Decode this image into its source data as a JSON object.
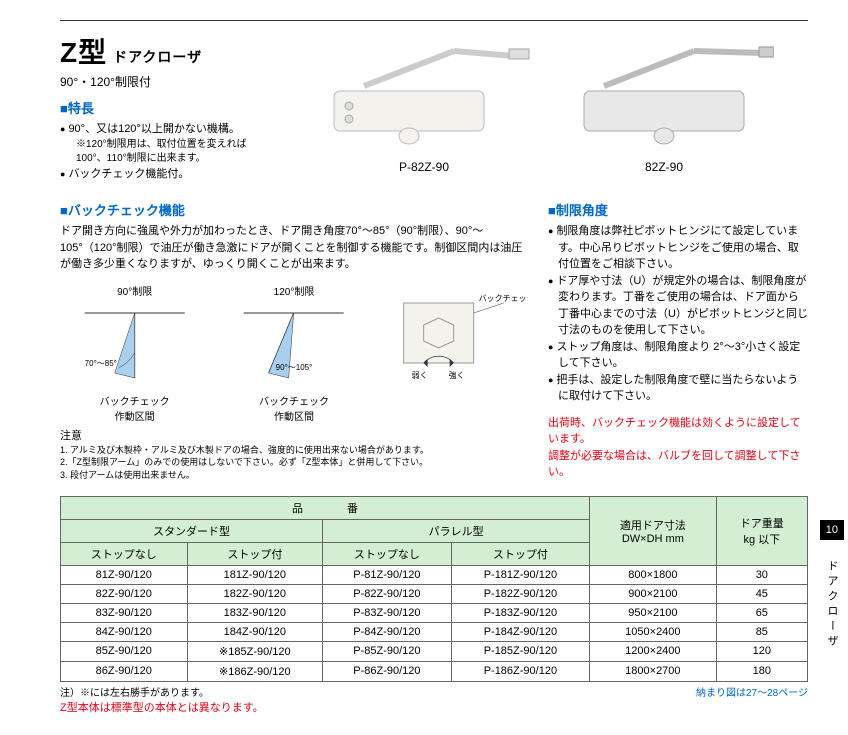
{
  "title": {
    "main": "Z型",
    "sub": "ドアクローザ"
  },
  "subtitle": "90°・120°制限付",
  "features": {
    "heading": "■特長",
    "items": [
      "90°、又は120°以上開かない機構。",
      "バックチェック機能付。"
    ],
    "note": "※120°制限用は、取付位置を変えれば　100°、110°制限に出来ます。"
  },
  "products": [
    {
      "label": "P-82Z-90"
    },
    {
      "label": "82Z-90"
    }
  ],
  "backcheck": {
    "heading": "■バックチェック機能",
    "text": "ドア開き方向に強風や外力が加わったとき、ドア開き角度70°～85°（90°制限）、90°～105°（120°制限）で油圧が働き急激にドアが開くことを制御する機能です。制御区間内は油圧が働き多少重くなりますが、ゆっくり開くことが出来ます。",
    "diag90": {
      "title": "90°制限",
      "range": "70°～85°",
      "note": "バックチェック\n作動区間"
    },
    "diag120": {
      "title": "120°制限",
      "range": "90°～105°",
      "note": "バックチェック\n作動区間"
    },
    "valve": {
      "label": "バックチェック調整バルブ",
      "weak": "弱く",
      "strong": "強く"
    }
  },
  "angle": {
    "heading": "■制限角度",
    "items": [
      "制限角度は弊社ピボットヒンジにて設定しています。中心吊りピボットヒンジをご使用の場合、取付位置をご相談下さい。",
      "ドア厚や寸法（U）が規定外の場合は、制限角度が変わります。丁番をご使用の場合は、ドア面から丁番中心までの寸法（U）がピボットヒンジと同じ寸法のものを使用して下さい。",
      "ストップ角度は、制限角度より 2°～3°小さく設定して下さい。",
      "把手は、設定した制限角度で壁に当たらないように取付けて下さい。"
    ]
  },
  "caution": {
    "heading": "注意",
    "items": [
      "1. アルミ及び木製枠・アルミ及び木製ドアの場合、強度的に使用出来ない場合があります。",
      "2.「Z型制限アーム」のみでの使用はしないで下さい。必ず「Z型本体」と併用して下さい。",
      "3. 段付アームは使用出来ません。"
    ]
  },
  "shipping_note": "出荷時、バックチェック機能は効くように設定しています。\n調整が必要な場合は、バルブを回して調整して下さい。",
  "table": {
    "head1": "品　　　　番",
    "head_std": "スタンダード型",
    "head_par": "パラレル型",
    "head_dim": "適用ドア寸法\nDW×DH mm",
    "head_wt": "ドア重量\nkg 以下",
    "sub_nostop": "ストップなし",
    "sub_stop": "ストップ付",
    "rows": [
      {
        "c1": "81Z-90/120",
        "c2": "181Z-90/120",
        "c3": "P-81Z-90/120",
        "c4": "P-181Z-90/120",
        "dim": "800×1800",
        "wt": "30"
      },
      {
        "c1": "82Z-90/120",
        "c2": "182Z-90/120",
        "c3": "P-82Z-90/120",
        "c4": "P-182Z-90/120",
        "dim": "900×2100",
        "wt": "45"
      },
      {
        "c1": "83Z-90/120",
        "c2": "183Z-90/120",
        "c3": "P-83Z-90/120",
        "c4": "P-183Z-90/120",
        "dim": "950×2100",
        "wt": "65"
      },
      {
        "c1": "84Z-90/120",
        "c2": "184Z-90/120",
        "c3": "P-84Z-90/120",
        "c4": "P-184Z-90/120",
        "dim": "1050×2400",
        "wt": "85"
      },
      {
        "c1": "85Z-90/120",
        "c2": "※185Z-90/120",
        "c3": "P-85Z-90/120",
        "c4": "P-185Z-90/120",
        "dim": "1200×2400",
        "wt": "120"
      },
      {
        "c1": "86Z-90/120",
        "c2": "※186Z-90/120",
        "c3": "P-86Z-90/120",
        "c4": "P-186Z-90/120",
        "dim": "1800×2700",
        "wt": "180"
      }
    ]
  },
  "table_note": "注）※には左右勝手があります。",
  "table_red": "Z型本体は標準型の本体とは異なります。",
  "nav_note": "納まり図は27～28ページ",
  "page_num": "10",
  "side_label": "ドアクローザ",
  "colors": {
    "blue": "#0066cc",
    "red": "#e60012",
    "th_bg": "#d4eed4",
    "diag_fill": "#a8cff0"
  }
}
